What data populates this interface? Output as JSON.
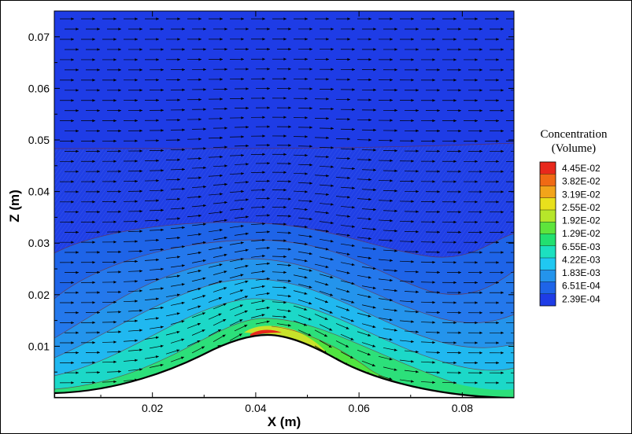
{
  "chart_data": {
    "type": "contour",
    "xlabel": "X (m)",
    "ylabel": "Z (m)",
    "xlim": [
      0.001,
      0.09
    ],
    "ylim": [
      0.0,
      0.075
    ],
    "x_ticks": [
      "0.02",
      "0.04",
      "0.06",
      "0.08"
    ],
    "y_ticks": [
      "0.01",
      "0.02",
      "0.03",
      "0.04",
      "0.05",
      "0.06",
      "0.07"
    ],
    "x_tick_values": [
      0.02,
      0.04,
      0.06,
      0.08
    ],
    "y_tick_values": [
      0.01,
      0.02,
      0.03,
      0.04,
      0.05,
      0.06,
      0.07
    ],
    "overlay": "velocity vectors (streamwise arrows)",
    "terrain": "sinusoidal hill with crest near x = 0.043 m, z = 0.012 m",
    "legend": {
      "title_line1": "Concentration",
      "title_line2": "(Volume)",
      "levels": [
        "4.45E-02",
        "3.82E-02",
        "3.19E-02",
        "2.55E-02",
        "1.92E-02",
        "1.29E-02",
        "6.55E-03",
        "4.22E-03",
        "1.83E-03",
        "6.51E-04",
        "2.39E-04"
      ],
      "colors": [
        "#e8281c",
        "#f06a14",
        "#f2a41a",
        "#e8e01c",
        "#b6e62a",
        "#5ee43c",
        "#22e070",
        "#1ce0c0",
        "#20c8f2",
        "#2494ec",
        "#1e64e8",
        "#1e3ce6"
      ]
    },
    "colors": {
      "background_field": "#1e3ce6",
      "hatched_band": "#1e48e4"
    }
  }
}
